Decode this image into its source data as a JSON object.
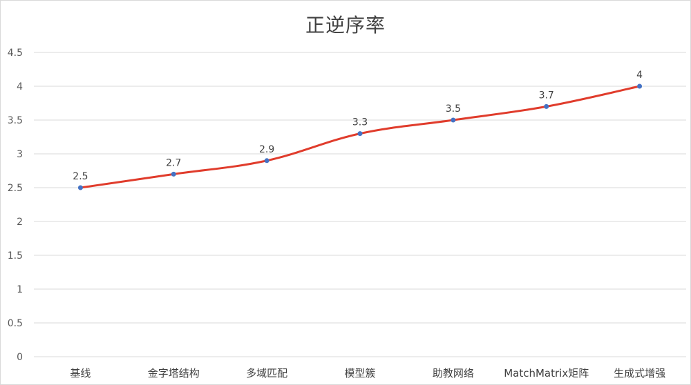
{
  "chart_data": {
    "type": "line",
    "title": "正逆序率",
    "xlabel": "",
    "ylabel": "",
    "categories": [
      "基线",
      "金字塔结构",
      "多域匹配",
      "模型簇",
      "助教网络",
      "MatchMatrix矩阵",
      "生成式增强"
    ],
    "series": [
      {
        "values": [
          2.5,
          2.7,
          2.9,
          3.3,
          3.5,
          3.7,
          4
        ]
      }
    ],
    "data_labels": [
      "2.5",
      "2.7",
      "2.9",
      "3.3",
      "3.5",
      "3.7",
      "4"
    ],
    "y_ticks": [
      "0",
      "0.5",
      "1",
      "1.5",
      "2",
      "2.5",
      "3",
      "3.5",
      "4",
      "4.5"
    ],
    "ylim": [
      0,
      4.5
    ],
    "grid": true,
    "legend": "none",
    "colors": {
      "line": "#e03c2c",
      "marker": "#4472c4",
      "grid": "#d9d9d9",
      "text": "#404040"
    }
  }
}
